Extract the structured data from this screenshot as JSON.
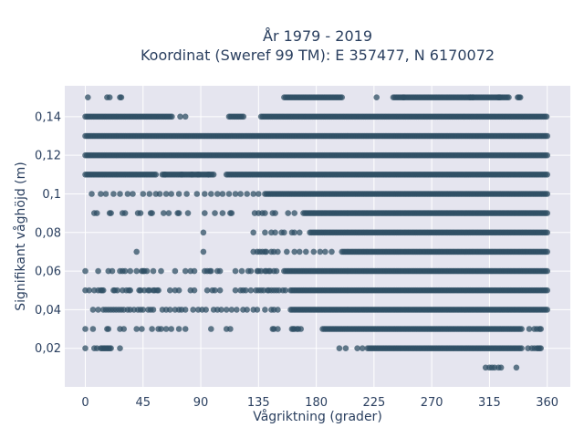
{
  "chart_data": {
    "type": "scatter",
    "title_lines": [
      "År 1979 - 2019",
      "Koordinat (Sweref 99 TM): E 357477, N 6170072"
    ],
    "xlabel": "Vågriktning (grader)",
    "ylabel": "Signifikant våghöjd (m)",
    "xlim": [
      -16,
      378
    ],
    "ylim": [
      0,
      0.156
    ],
    "xticks": [
      0,
      45,
      90,
      135,
      180,
      225,
      270,
      315,
      360
    ],
    "yticks": [
      0.02,
      0.04,
      0.06,
      0.08,
      0.1,
      0.12,
      0.14
    ],
    "ytick_labels": [
      "0,02",
      "0,04",
      "0,06",
      "0,08",
      "0,1",
      "0,12",
      "0,14"
    ],
    "grid": true,
    "marker_color": "#2f4f64",
    "plot_bg": "#e5e5ef",
    "rows": [
      {
        "y": 0.15,
        "dense": [
          [
            155,
            200
          ],
          [
            240,
            330
          ]
        ],
        "sparse": [
          2,
          17,
          19,
          27,
          28,
          227,
          248,
          300,
          302,
          322,
          323,
          337,
          338,
          339
        ]
      },
      {
        "y": 0.14,
        "dense": [
          [
            0,
            68
          ],
          [
            112,
            124
          ],
          [
            137,
            360
          ]
        ],
        "sparse": [
          74,
          78
        ]
      },
      {
        "y": 0.13,
        "dense": [
          [
            0,
            360
          ]
        ],
        "sparse": []
      },
      {
        "y": 0.12,
        "dense": [
          [
            0,
            360
          ]
        ],
        "sparse": []
      },
      {
        "y": 0.11,
        "dense": [
          [
            0,
            55
          ],
          [
            60,
            100
          ],
          [
            110,
            360
          ]
        ],
        "sparse": [
          62,
          75,
          83,
          88,
          96
        ]
      },
      {
        "y": 0.1,
        "dense": [
          [
            140,
            360
          ]
        ],
        "sparse": [
          5,
          12,
          16,
          22,
          27,
          33,
          37,
          45,
          50,
          55,
          58,
          63,
          67,
          73,
          79,
          87,
          93,
          98,
          103,
          107,
          112,
          117,
          121,
          126,
          131,
          135
        ]
      },
      {
        "y": 0.09,
        "dense": [
          [
            170,
            360
          ]
        ],
        "sparse": [
          7,
          9,
          19,
          20,
          29,
          31,
          41,
          43,
          51,
          52,
          61,
          65,
          72,
          73,
          80,
          93,
          101,
          107,
          113,
          114,
          132,
          135,
          138,
          140,
          146,
          148,
          158,
          163
        ]
      },
      {
        "y": 0.08,
        "dense": [
          [
            175,
            360
          ]
        ],
        "sparse": [
          92,
          131,
          140,
          145,
          148,
          153,
          155,
          161,
          163,
          167
        ]
      },
      {
        "y": 0.07,
        "dense": [
          [
            200,
            360
          ]
        ],
        "sparse": [
          40,
          92,
          131,
          134,
          136,
          138,
          140,
          141,
          145,
          147,
          150,
          157,
          163,
          167,
          172,
          178,
          183,
          187,
          192
        ]
      },
      {
        "y": 0.06,
        "dense": [
          [
            155,
            360
          ]
        ],
        "sparse": [
          0,
          10,
          18,
          21,
          27,
          29,
          31,
          35,
          40,
          44,
          45,
          46,
          48,
          53,
          59,
          70,
          78,
          82,
          85,
          93,
          95,
          97,
          98,
          103,
          105,
          117,
          122,
          127,
          129,
          134,
          135,
          137,
          140,
          141,
          143,
          144,
          147,
          149
        ]
      },
      {
        "y": 0.05,
        "dense": [
          [
            160,
            360
          ]
        ],
        "sparse": [
          0,
          3,
          7,
          10,
          12,
          13,
          14,
          22,
          23,
          25,
          29,
          32,
          34,
          35,
          42,
          43,
          46,
          49,
          50,
          53,
          54,
          56,
          57,
          66,
          70,
          73,
          82,
          85,
          95,
          99,
          101,
          105,
          117,
          121,
          123,
          125,
          129,
          133,
          135,
          137,
          139,
          142,
          143,
          145,
          147,
          149,
          151,
          154,
          156
        ]
      },
      {
        "y": 0.04,
        "dense": [
          [
            160,
            360
          ]
        ],
        "sparse": [
          6,
          10,
          14,
          16,
          18,
          20,
          22,
          24,
          26,
          28,
          30,
          33,
          35,
          38,
          41,
          43,
          45,
          49,
          51,
          53,
          60,
          63,
          66,
          70,
          73,
          75,
          78,
          84,
          88,
          91,
          94,
          100,
          103,
          106,
          110,
          114,
          118,
          123,
          126,
          131,
          134,
          140,
          145,
          147,
          150
        ]
      },
      {
        "y": 0.03,
        "dense": [
          [
            185,
            340
          ]
        ],
        "sparse": [
          0,
          6,
          17,
          18,
          27,
          30,
          40,
          44,
          52,
          57,
          59,
          63,
          67,
          73,
          78,
          98,
          110,
          113,
          146,
          147,
          150,
          161,
          162,
          163,
          165,
          166,
          168,
          346,
          350,
          352,
          354,
          355
        ]
      },
      {
        "y": 0.02,
        "dense": [
          [
            220,
            340
          ]
        ],
        "sparse": [
          0,
          7,
          9,
          12,
          13,
          14,
          15,
          16,
          17,
          18,
          19,
          20,
          27,
          198,
          203,
          212,
          216,
          345,
          348,
          350,
          352,
          353,
          354,
          355
        ]
      },
      {
        "y": 0.01,
        "dense": [],
        "sparse": [
          312,
          315,
          317,
          319,
          322,
          324,
          336
        ]
      }
    ]
  }
}
